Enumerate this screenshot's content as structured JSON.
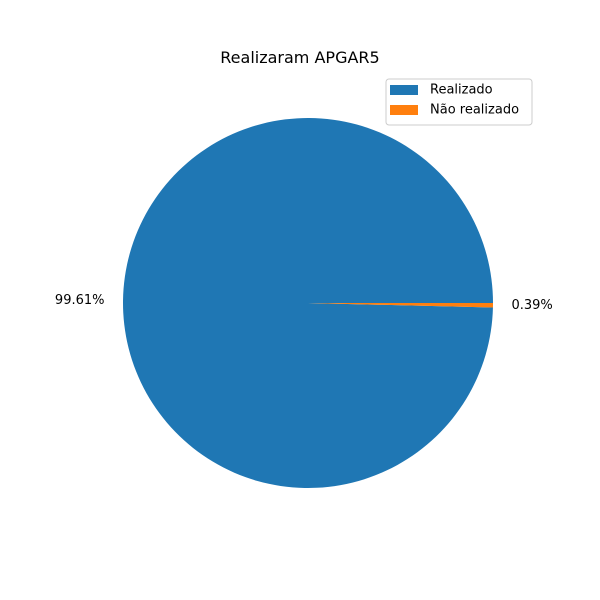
{
  "chart_data": {
    "type": "pie",
    "title": "Realizaram APGAR5",
    "categories": [
      "Realizado",
      "Não realizado"
    ],
    "values": [
      99.61,
      0.39
    ],
    "value_labels": [
      "99.61%",
      "0.39%"
    ],
    "colors": [
      "#1f77b4",
      "#ff7f0e"
    ],
    "start_angle_deg": 0,
    "direction": "counterclockwise",
    "legend_position": "upper-right",
    "grid": false
  }
}
